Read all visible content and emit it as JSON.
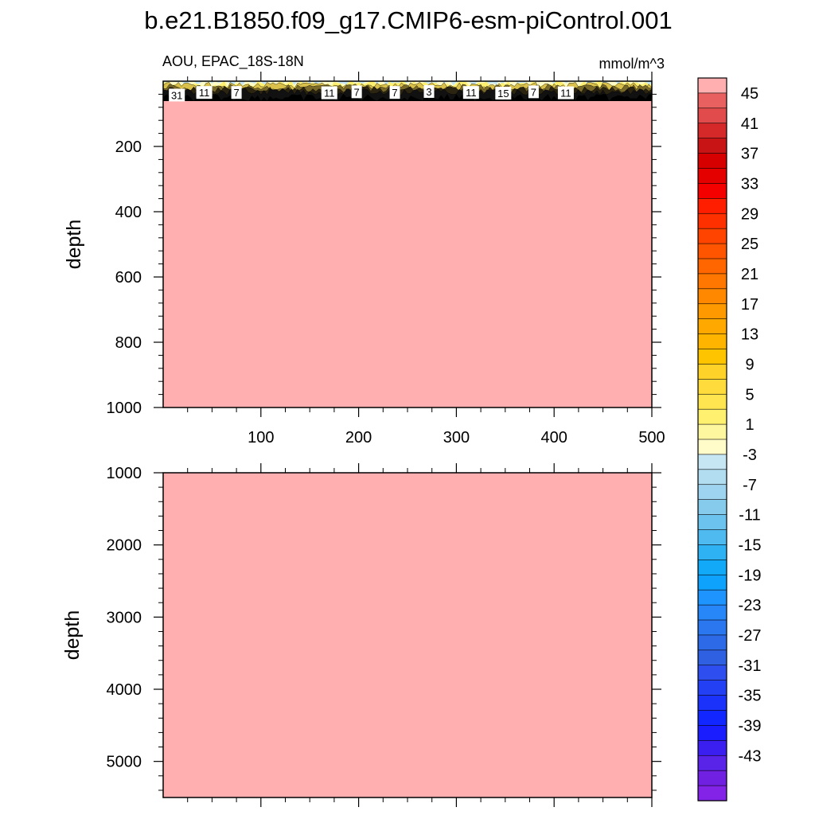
{
  "title": "b.e21.B1850.f09_g17.CMIP6-esm-piControl.001",
  "subtitle_left": "AOU, EPAC_18S-18N",
  "subtitle_right": "mmol/m^3",
  "colors": {
    "fill": "#ffafaf",
    "background": "#ffffff",
    "axis": "#000000"
  },
  "chart_data": [
    {
      "type": "heatmap",
      "panel": "upper",
      "ylabel": "depth",
      "xlim": [
        0,
        500
      ],
      "ylim": [
        0,
        1000
      ],
      "y_reversed": true,
      "x_ticks": [
        100,
        200,
        300,
        400,
        500
      ],
      "y_ticks": [
        200,
        400,
        600,
        800,
        1000
      ],
      "x_tick_labels": [
        "100",
        "200",
        "300",
        "400",
        "500"
      ],
      "y_tick_labels": [
        "200",
        "400",
        "600",
        "800",
        "1000"
      ],
      "near_surface_depth_range": [
        0,
        60
      ],
      "fill_value": 47,
      "contour_labels": [
        {
          "x": 14,
          "y": 45,
          "value": "31"
        },
        {
          "x": 42,
          "y": 37,
          "value": "11"
        },
        {
          "x": 75,
          "y": 37,
          "value": "7"
        },
        {
          "x": 170,
          "y": 38,
          "value": "11"
        },
        {
          "x": 198,
          "y": 35,
          "value": "7"
        },
        {
          "x": 237,
          "y": 37,
          "value": "7"
        },
        {
          "x": 272,
          "y": 34,
          "value": "3"
        },
        {
          "x": 315,
          "y": 37,
          "value": "11"
        },
        {
          "x": 348,
          "y": 39,
          "value": "15"
        },
        {
          "x": 379,
          "y": 35,
          "value": "7"
        },
        {
          "x": 412,
          "y": 38,
          "value": "11"
        }
      ]
    },
    {
      "type": "heatmap",
      "panel": "lower",
      "ylabel": "depth",
      "xlim": [
        0,
        500
      ],
      "ylim": [
        1000,
        5500
      ],
      "y_reversed": true,
      "x_ticks": [
        100,
        200,
        300,
        400,
        500
      ],
      "y_ticks": [
        1000,
        2000,
        3000,
        4000,
        5000
      ],
      "y_tick_labels": [
        "1000",
        "2000",
        "3000",
        "4000",
        "5000"
      ],
      "fill_value": 47
    }
  ],
  "colorbar": {
    "labels": [
      "45",
      "41",
      "37",
      "33",
      "29",
      "25",
      "21",
      "17",
      "13",
      "9",
      "5",
      "1",
      "-3",
      "-7",
      "-11",
      "-15",
      "-19",
      "-23",
      "-27",
      "-31",
      "-35",
      "-39",
      "-43"
    ],
    "colors": [
      "#ffafaf",
      "#e96060",
      "#e14b4b",
      "#d52828",
      "#c81414",
      "#d70000",
      "#e50000",
      "#f50000",
      "#ff1e00",
      "#ff3000",
      "#ff4400",
      "#ff5500",
      "#ff6600",
      "#ff7700",
      "#ff8800",
      "#ff9900",
      "#ffa800",
      "#ffb500",
      "#ffc400",
      "#ffd22a",
      "#ffdc3c",
      "#ffe650",
      "#fff070",
      "#fff7a0",
      "#fffcca",
      "#c6e6f4",
      "#b2ddf0",
      "#9ed4ef",
      "#86cbec",
      "#6cc3ee",
      "#4fbaf0",
      "#2eb2f4",
      "#12aaf8",
      "#0ea2fc",
      "#1e94ff",
      "#2786f8",
      "#2a77ef",
      "#2d6ae8",
      "#3060e2",
      "#2f4ef0",
      "#2440f4",
      "#1a32fa",
      "#1226ff",
      "#1a1eff",
      "#3b1ff0",
      "#5a24e8",
      "#7020e0",
      "#8423e8"
    ]
  }
}
